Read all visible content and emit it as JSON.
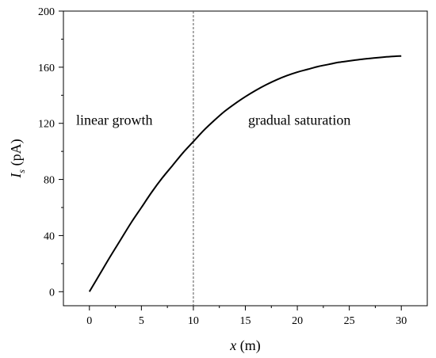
{
  "chart_data": {
    "type": "line",
    "title": "",
    "xlabel": {
      "var": "x",
      "unit": " (m)"
    },
    "ylabel": {
      "var": "I",
      "sub": "s",
      "unit": " (pA)"
    },
    "xlim": [
      -2.5,
      32.5
    ],
    "ylim": [
      -10,
      200
    ],
    "xticks": [
      0,
      5,
      10,
      15,
      20,
      25,
      30
    ],
    "yticks": [
      0,
      40,
      80,
      120,
      160,
      200
    ],
    "grid": false,
    "legend": "none",
    "colors": {
      "line": "#000000",
      "divider": "#555555",
      "axis": "#000000"
    },
    "divider_x": 10,
    "annotations": [
      {
        "text": "linear growth",
        "x": 2.4,
        "y": 119
      },
      {
        "text": "gradual  saturation",
        "x": 20.2,
        "y": 119
      }
    ],
    "series": [
      {
        "x": [
          0,
          1,
          2,
          3,
          4,
          5,
          6,
          7,
          8,
          9,
          10,
          11,
          12,
          13,
          14,
          15,
          16,
          17,
          18,
          19,
          20,
          21,
          22,
          23,
          24,
          25,
          26,
          27,
          28,
          29,
          30
        ],
        "y": [
          0,
          12.5,
          25,
          37,
          49,
          60,
          71,
          81,
          90,
          99,
          107,
          115,
          122,
          128.5,
          134,
          139,
          143.5,
          147.5,
          151,
          154,
          156.5,
          158.5,
          160.5,
          162,
          163.5,
          164.5,
          165.5,
          166.3,
          167,
          167.6,
          168
        ]
      }
    ]
  }
}
